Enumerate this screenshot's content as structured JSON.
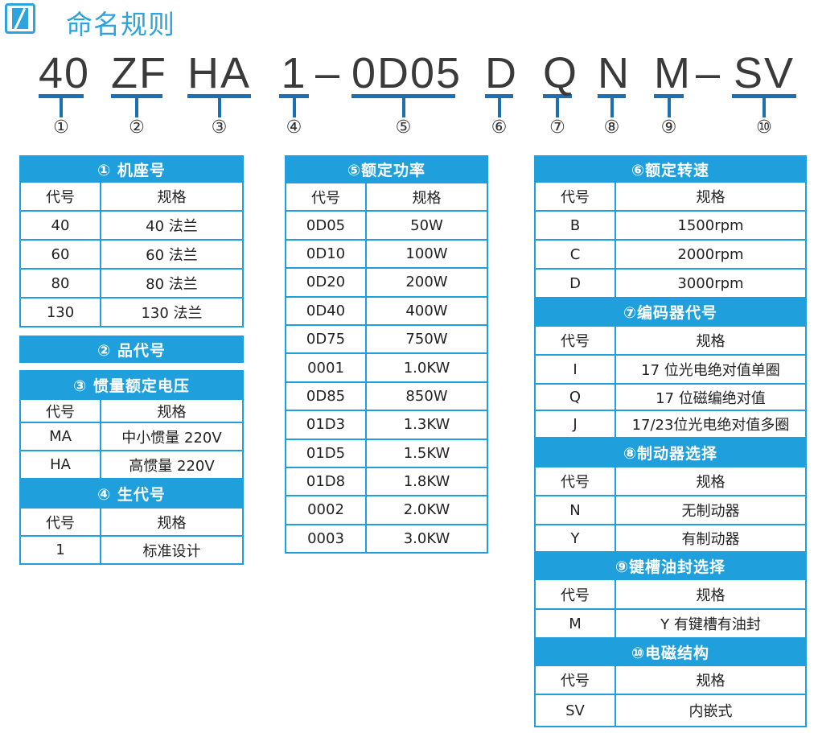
{
  "title": "命名规则",
  "logo_icon": "motor-logo-icon",
  "accent": "#1fa0dc",
  "underline_color": "#1a6fb5",
  "code_segments": [
    {
      "code": "40",
      "num": "①"
    },
    {
      "code": "ZF",
      "num": "②"
    },
    {
      "code": "HA",
      "num": "③"
    },
    {
      "code": "1",
      "num": "④"
    },
    {
      "code": "0D05",
      "num": "⑤"
    },
    {
      "code": "D",
      "num": "⑥"
    },
    {
      "code": "Q",
      "num": "⑦"
    },
    {
      "code": "N",
      "num": "⑧"
    },
    {
      "code": "M",
      "num": "⑨"
    },
    {
      "code": "SV",
      "num": "⑩"
    }
  ],
  "dashes": [
    "–",
    "–"
  ],
  "tables": [
    {
      "groups": [
        {
          "blocks": [
            {
              "type": "header",
              "text": "①  机座号"
            },
            {
              "type": "row",
              "code": "代号",
              "spec": "规格"
            },
            {
              "type": "row",
              "code": "40",
              "spec": "40 法兰"
            },
            {
              "type": "row",
              "code": "60",
              "spec": "60 法兰"
            },
            {
              "type": "row",
              "code": "80",
              "spec": "80 法兰"
            },
            {
              "type": "row",
              "code": "130",
              "spec": "130 法兰"
            }
          ]
        },
        {
          "blocks": [
            {
              "type": "header",
              "text": "②  品代号"
            }
          ]
        },
        {
          "blocks": [
            {
              "type": "header",
              "text": "③ 惯量额定电压"
            },
            {
              "type": "row",
              "code": "代号",
              "spec": "规格"
            },
            {
              "type": "row",
              "code": "MA",
              "spec": "中小惯量 220V"
            },
            {
              "type": "row",
              "code": "HA",
              "spec": "高惯量 220V"
            },
            {
              "type": "header",
              "text": "④  生代号"
            },
            {
              "type": "row",
              "code": "代号",
              "spec": "规格"
            },
            {
              "type": "row",
              "code": "1",
              "spec": "标准设计"
            }
          ]
        }
      ]
    },
    {
      "groups": [
        {
          "blocks": [
            {
              "type": "header",
              "text": "⑤额定功率"
            },
            {
              "type": "row",
              "code": "代号",
              "spec": "规格"
            },
            {
              "type": "row",
              "code": "0D05",
              "spec": "50W"
            },
            {
              "type": "row",
              "code": "0D10",
              "spec": "100W"
            },
            {
              "type": "row",
              "code": "0D20",
              "spec": "200W"
            },
            {
              "type": "row",
              "code": "0D40",
              "spec": "400W"
            },
            {
              "type": "row",
              "code": "0D75",
              "spec": "750W"
            },
            {
              "type": "row",
              "code": "0001",
              "spec": "1.0KW"
            },
            {
              "type": "row",
              "code": "0D85",
              "spec": "850W"
            },
            {
              "type": "row",
              "code": "01D3",
              "spec": "1.3KW"
            },
            {
              "type": "row",
              "code": "01D5",
              "spec": "1.5KW"
            },
            {
              "type": "row",
              "code": "01D8",
              "spec": "1.8KW"
            },
            {
              "type": "row",
              "code": "0002",
              "spec": "2.0KW"
            },
            {
              "type": "row",
              "code": "0003",
              "spec": "3.0KW"
            }
          ]
        }
      ]
    },
    {
      "groups": [
        {
          "blocks": [
            {
              "type": "header",
              "text": "⑥额定转速"
            },
            {
              "type": "row",
              "code": "代号",
              "spec": "规格"
            },
            {
              "type": "row",
              "code": "B",
              "spec": "1500rpm"
            },
            {
              "type": "row",
              "code": "C",
              "spec": "2000rpm"
            },
            {
              "type": "row",
              "code": "D",
              "spec": "3000rpm"
            },
            {
              "type": "header",
              "text": "⑦编码器代号"
            },
            {
              "type": "row",
              "code": "代号",
              "spec": "规格"
            },
            {
              "type": "row",
              "code": "I",
              "spec": "17 位光电绝对值单圈"
            },
            {
              "type": "row",
              "code": "Q",
              "spec": "17 位磁编绝对值"
            },
            {
              "type": "row",
              "code": "J",
              "spec": "17/23位光电绝对值多圈"
            },
            {
              "type": "header",
              "text": "⑧制动器选择"
            },
            {
              "type": "row",
              "code": "代号",
              "spec": "规格"
            },
            {
              "type": "row",
              "code": "N",
              "spec": "无制动器"
            },
            {
              "type": "row",
              "code": "Y",
              "spec": "有制动器"
            },
            {
              "type": "header",
              "text": "⑨键槽油封选择"
            },
            {
              "type": "row",
              "code": "代号",
              "spec": "规格"
            },
            {
              "type": "row",
              "code": "M",
              "spec": "Y 有键槽有油封"
            },
            {
              "type": "header",
              "text": "⑩电磁结构"
            },
            {
              "type": "row",
              "code": "代号",
              "spec": "规格"
            },
            {
              "type": "row",
              "code": "SV",
              "spec": "内嵌式"
            }
          ]
        }
      ]
    }
  ]
}
